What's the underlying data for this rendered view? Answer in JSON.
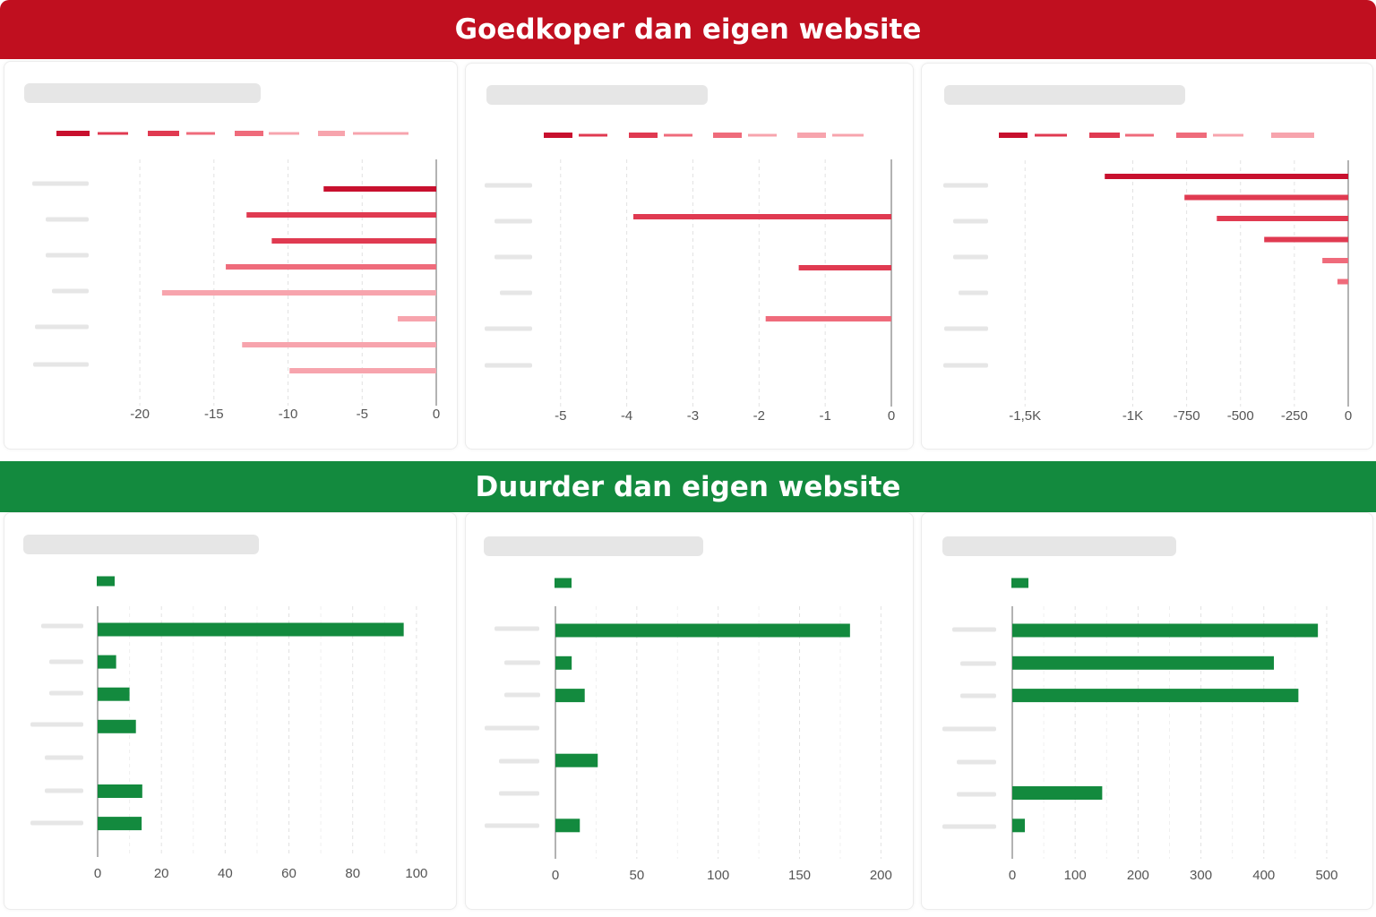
{
  "banners": {
    "top": "Goedkoper dan eigen website",
    "bottom": "Duurder dan eigen website"
  },
  "colors": {
    "negative_banner": "#c00f1f",
    "positive_banner": "#138a3e",
    "negative_shades": [
      "#c8102e",
      "#e03a51",
      "#ef6b7b",
      "#f7a4ad"
    ],
    "positive_bar": "#138a3e",
    "placeholder": "#e6e6e6"
  },
  "chart_data": [
    {
      "type": "bar",
      "orientation": "horizontal",
      "group": "top",
      "xlim": [
        -22,
        0
      ],
      "ticks": [
        -20,
        -15,
        -10,
        -5,
        0
      ],
      "tick_labels": [
        "-20",
        "-15",
        "-10",
        "-5",
        "0"
      ],
      "grid": true,
      "legend": "top",
      "values": [
        -7.6,
        -12.8,
        -11.1,
        -14.2,
        -18.5,
        -2.6,
        -13.1,
        -9.9
      ],
      "value_shades": [
        0,
        1,
        1,
        2,
        3,
        3,
        3,
        3
      ]
    },
    {
      "type": "bar",
      "orientation": "horizontal",
      "group": "top",
      "xlim": [
        -5.2,
        0
      ],
      "ticks": [
        -5,
        -4,
        -3,
        -2,
        -1,
        0
      ],
      "tick_labels": [
        "-5",
        "-4",
        "-3",
        "-2",
        "-1",
        "0"
      ],
      "grid": true,
      "legend": "top",
      "values": [
        -3.9,
        -1.4,
        -1.9
      ],
      "value_shades": [
        1,
        1,
        2
      ]
    },
    {
      "type": "bar",
      "orientation": "horizontal",
      "group": "top",
      "xlim": [
        -1580,
        0
      ],
      "ticks": [
        -1500,
        -1000,
        -750,
        -500,
        -250,
        0
      ],
      "tick_labels": [
        "-1,5K",
        "-1K",
        "-750",
        "-500",
        "-250",
        "0"
      ],
      "grid": true,
      "legend": "top",
      "values": [
        -1130,
        -760,
        -610,
        -390,
        -120,
        -50
      ],
      "value_shades": [
        0,
        1,
        1,
        1,
        2,
        2
      ]
    },
    {
      "type": "bar",
      "orientation": "horizontal",
      "group": "bottom",
      "xlim": [
        0,
        102
      ],
      "ticks": [
        0,
        20,
        40,
        60,
        80,
        100
      ],
      "tick_labels": [
        "0",
        "20",
        "40",
        "60",
        "80",
        "100"
      ],
      "grid": true,
      "legend": "top-left",
      "values": [
        96,
        5.8,
        10,
        12,
        null,
        14,
        13.8
      ]
    },
    {
      "type": "bar",
      "orientation": "horizontal",
      "group": "bottom",
      "xlim": [
        0,
        202
      ],
      "ticks": [
        0,
        50,
        100,
        150,
        200
      ],
      "tick_labels": [
        "0",
        "50",
        "100",
        "150",
        "200"
      ],
      "grid": true,
      "legend": "top-left",
      "values": [
        181,
        10,
        18,
        null,
        26,
        null,
        15
      ]
    },
    {
      "type": "bar",
      "orientation": "horizontal",
      "group": "bottom",
      "xlim": [
        0,
        520
      ],
      "ticks": [
        0,
        100,
        200,
        300,
        400,
        500
      ],
      "tick_labels": [
        "0",
        "100",
        "200",
        "300",
        "400",
        "500"
      ],
      "grid": true,
      "legend": "top-left",
      "values": [
        486,
        416,
        455,
        null,
        null,
        143,
        20
      ]
    }
  ]
}
